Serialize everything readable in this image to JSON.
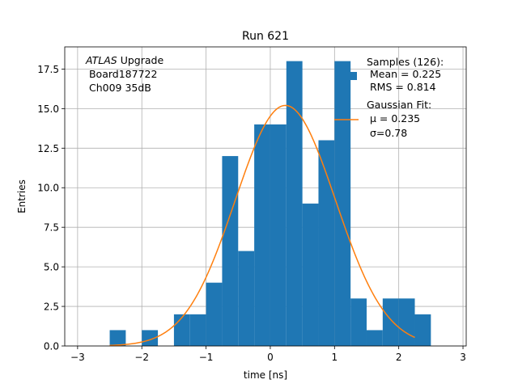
{
  "chart_data": {
    "type": "bar",
    "subtype": "histogram",
    "title": "Run 621",
    "xlabel": "time [ns]",
    "ylabel": "Entries",
    "xlim": [
      -3.2,
      3.05
    ],
    "ylim": [
      0,
      18.9
    ],
    "grid": true,
    "x_ticks": [
      -3,
      -2,
      -1,
      0,
      1,
      2,
      3
    ],
    "x_tick_labels": [
      "−3",
      "−2",
      "−1",
      "0",
      "1",
      "2",
      "3"
    ],
    "y_ticks": [
      0,
      2.5,
      5,
      7.5,
      10,
      12.5,
      15,
      17.5
    ],
    "y_tick_labels": [
      "0.0",
      "2.5",
      "5.0",
      "7.5",
      "10.0",
      "12.5",
      "15.0",
      "17.5"
    ],
    "bin_edges": [
      -2.5,
      -2.25,
      -2.0,
      -1.75,
      -1.5,
      -1.25,
      -1.0,
      -0.75,
      -0.5,
      -0.25,
      0.0,
      0.25,
      0.5,
      0.75,
      1.0,
      1.25,
      1.5,
      1.75,
      2.0,
      2.25
    ],
    "counts": [
      1,
      0,
      1,
      0,
      2,
      2,
      4,
      12,
      6,
      14,
      14,
      18,
      9,
      13,
      18,
      3,
      1,
      3,
      3,
      2
    ],
    "histogram_color": "#1f77b4",
    "fit": {
      "type": "gaussian",
      "mu": 0.235,
      "sigma": 0.78,
      "amplitude": 15.2,
      "x_range": [
        -2.5,
        2.25
      ],
      "color": "#ff7f0e"
    },
    "legend": {
      "location": "upper right",
      "samples_lines": [
        "Samples (126):",
        " Mean = 0.225",
        " RMS = 0.814"
      ],
      "fit_lines": [
        "Gaussian Fit:",
        " μ = 0.235",
        " σ=0.78"
      ]
    },
    "annotation": {
      "line1_italic": "ATLAS",
      "line1_rest": " Upgrade",
      "line2": " Board187722",
      "line3": " Ch009 35dB"
    }
  }
}
